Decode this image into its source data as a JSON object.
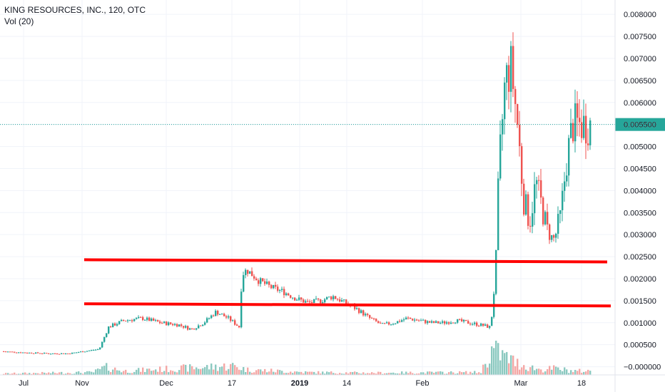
{
  "header": {
    "title": "KING RESOURCES, INC., 120, OTC",
    "volume_label": "Vol (20)"
  },
  "colors": {
    "up": "#26a69a",
    "down": "#ef5350",
    "up_volume": "#8cc9c0",
    "down_volume": "#f4a7a5",
    "trend_line": "#ff0000",
    "last_price_label": "#26a69a",
    "grid": "#f0f3fa",
    "axis_text": "#131722"
  },
  "chart_data": {
    "type": "candlestick",
    "title": "KING RESOURCES, INC., 120, OTC",
    "y_axis": {
      "position": "right",
      "ticks": [
        "0.008000",
        "0.007500",
        "0.007000",
        "0.006500",
        "0.006000",
        "0.005500",
        "0.005000",
        "0.004500",
        "0.004000",
        "0.003500",
        "0.003000",
        "0.002500",
        "0.002000",
        "0.001500",
        "0.001000",
        "0.000500",
        "−0.000000"
      ],
      "tick_values": [
        0.008,
        0.0075,
        0.007,
        0.0065,
        0.006,
        0.0055,
        0.005,
        0.0045,
        0.004,
        0.0035,
        0.003,
        0.0025,
        0.002,
        0.0015,
        0.001,
        0.0005,
        0.0
      ],
      "range": [
        -0.00012,
        0.0081
      ]
    },
    "x_axis": {
      "tick_labels": [
        "Jul",
        "Nov",
        "Dec",
        "17",
        "2019",
        "14",
        "Feb",
        "Mar",
        "18"
      ],
      "bold_labels": [
        "2019"
      ]
    },
    "last_price": {
      "value": 0.0055,
      "label": "0.005500"
    },
    "trend_lines": [
      {
        "from": [
          0.0,
          0.00243
        ],
        "to": [
          0.92,
          0.00238
        ]
      },
      {
        "from": [
          0.0,
          0.00143
        ],
        "to": [
          0.92,
          0.00138
        ]
      }
    ],
    "price_path": [
      [
        0,
        0.00035
      ],
      [
        0.04,
        0.00032
      ],
      [
        0.08,
        0.0003
      ],
      [
        0.11,
        0.0003
      ],
      [
        0.14,
        0.00036
      ],
      [
        0.16,
        0.0004
      ],
      [
        0.175,
        0.0009
      ],
      [
        0.2,
        0.00105
      ],
      [
        0.23,
        0.0011
      ],
      [
        0.26,
        0.001
      ],
      [
        0.29,
        0.00095
      ],
      [
        0.31,
        0.00085
      ],
      [
        0.33,
        0.001
      ],
      [
        0.35,
        0.00125
      ],
      [
        0.37,
        0.0011
      ],
      [
        0.388,
        0.0009
      ],
      [
        0.392,
        0.0021
      ],
      [
        0.4,
        0.0022
      ],
      [
        0.42,
        0.00195
      ],
      [
        0.44,
        0.0018
      ],
      [
        0.46,
        0.0017
      ],
      [
        0.48,
        0.00155
      ],
      [
        0.5,
        0.00145
      ],
      [
        0.52,
        0.0015
      ],
      [
        0.54,
        0.0016
      ],
      [
        0.56,
        0.00145
      ],
      [
        0.58,
        0.0013
      ],
      [
        0.6,
        0.0011
      ],
      [
        0.62,
        0.00095
      ],
      [
        0.64,
        0.001
      ],
      [
        0.66,
        0.0011
      ],
      [
        0.68,
        0.00105
      ],
      [
        0.7,
        0.001
      ],
      [
        0.72,
        0.001
      ],
      [
        0.74,
        0.00105
      ],
      [
        0.76,
        0.001
      ],
      [
        0.78,
        0.00095
      ],
      [
        0.795,
        0.0009
      ],
      [
        0.8,
        0.0013
      ],
      [
        0.805,
        0.0025
      ],
      [
        0.81,
        0.0045
      ],
      [
        0.82,
        0.0065
      ],
      [
        0.83,
        0.0068
      ],
      [
        0.84,
        0.0055
      ],
      [
        0.85,
        0.0038
      ],
      [
        0.86,
        0.0033
      ],
      [
        0.87,
        0.0042
      ],
      [
        0.88,
        0.0036
      ],
      [
        0.89,
        0.003
      ],
      [
        0.9,
        0.0029
      ],
      [
        0.91,
        0.0034
      ],
      [
        0.92,
        0.0047
      ],
      [
        0.93,
        0.0055
      ]
    ],
    "volume_hint": [
      [
        0.0,
        0.05
      ],
      [
        0.15,
        0.1
      ],
      [
        0.17,
        0.3
      ],
      [
        0.2,
        0.15
      ],
      [
        0.38,
        0.35
      ],
      [
        0.4,
        0.2
      ],
      [
        0.5,
        0.1
      ],
      [
        0.6,
        0.08
      ],
      [
        0.78,
        0.1
      ],
      [
        0.8,
        1.0
      ],
      [
        0.82,
        0.7
      ],
      [
        0.84,
        0.45
      ],
      [
        0.86,
        0.3
      ],
      [
        0.88,
        0.2
      ],
      [
        0.9,
        0.25
      ],
      [
        0.93,
        0.15
      ]
    ]
  }
}
